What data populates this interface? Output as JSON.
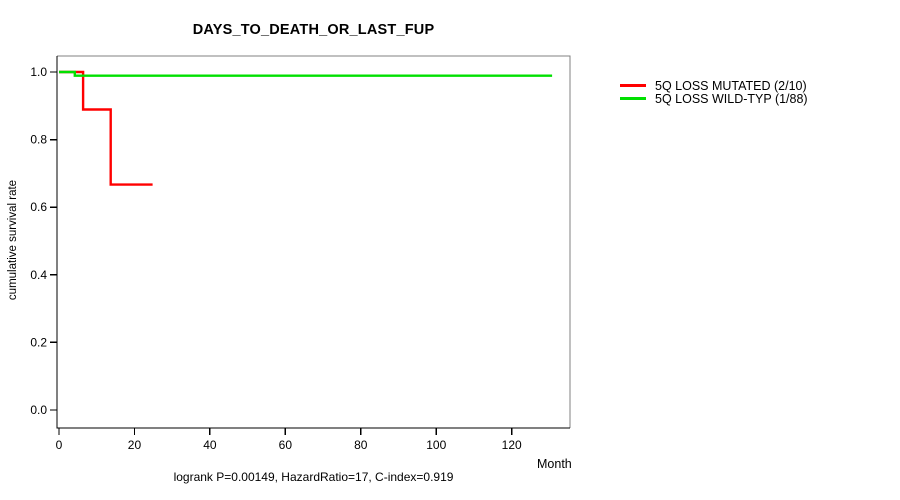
{
  "page": {
    "background": "#ffffff"
  },
  "chart_data": {
    "type": "line",
    "subtype": "kaplan-meier-step-survival",
    "title": "DAYS_TO_DEATH_OR_LAST_FUP",
    "xlabel": "Month",
    "ylabel": "cumulative survival rate",
    "caption": "logrank P=0.00149, HazardRatio=17, C-index=0.919",
    "x_ticks": [
      "0",
      "20",
      "40",
      "60",
      "80",
      "100",
      "120"
    ],
    "y_ticks": [
      "0.0",
      "0.2",
      "0.4",
      "0.6",
      "0.8",
      "1.0"
    ],
    "xlim": [
      0,
      135.5
    ],
    "ylim": [
      0,
      1.05
    ],
    "grid": false,
    "legend_position": "right-outside",
    "axis_color": "#000000",
    "box_color": "#808080",
    "series": [
      {
        "name": "5Q LOSS MUTATED (2/10)",
        "color": "#ff0000",
        "events": "2 of 10",
        "points": [
          [
            0,
            1.0
          ],
          [
            6.4,
            1.0
          ],
          [
            6.4,
            0.889
          ],
          [
            13.7,
            0.889
          ],
          [
            13.7,
            0.667
          ],
          [
            24.8,
            0.667
          ]
        ]
      },
      {
        "name": "5Q LOSS WILD-TYP (1/88)",
        "color": "#00e000",
        "events": "1 of 88",
        "points": [
          [
            0,
            1.0
          ],
          [
            4.2,
            1.0
          ],
          [
            4.2,
            0.989
          ],
          [
            130.7,
            0.989
          ]
        ]
      }
    ]
  }
}
